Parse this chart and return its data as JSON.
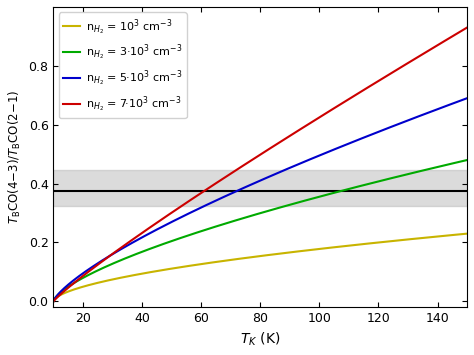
{
  "title": "",
  "xlabel": "T$_K$ (K)",
  "xlim": [
    10,
    150
  ],
  "ylim": [
    -0.02,
    1.0
  ],
  "x_ticks": [
    20,
    40,
    60,
    80,
    100,
    120,
    140
  ],
  "y_ticks": [
    0.0,
    0.2,
    0.4,
    0.6,
    0.8
  ],
  "hline_value": 0.375,
  "hline_color": "black",
  "hspan_low": 0.325,
  "hspan_high": 0.445,
  "hspan_color": "#b0b0b0",
  "hspan_alpha": 0.45,
  "series": [
    {
      "label": "n$_{H_2}$ = 10$^3$ cm$^{-3}$",
      "color": "#c8b400",
      "scale": 0.23,
      "exponent": 0.58
    },
    {
      "label": "n$_{H_2}$ = 3·10$^3$ cm$^{-3}$",
      "color": "#00aa00",
      "scale": 0.48,
      "exponent": 0.68
    },
    {
      "label": "n$_{H_2}$ = 5·10$^3$ cm$^{-3}$",
      "color": "#0000cc",
      "scale": 0.69,
      "exponent": 0.75
    },
    {
      "label": "n$_{H_2}$ = 7·10$^3$ cm$^{-3}$",
      "color": "#cc0000",
      "scale": 0.93,
      "exponent": 0.9
    }
  ],
  "legend_loc": "upper left",
  "legend_fontsize": 8.0,
  "legend_labelspacing": 0.55,
  "figsize": [
    4.74,
    3.55
  ],
  "dpi": 100
}
